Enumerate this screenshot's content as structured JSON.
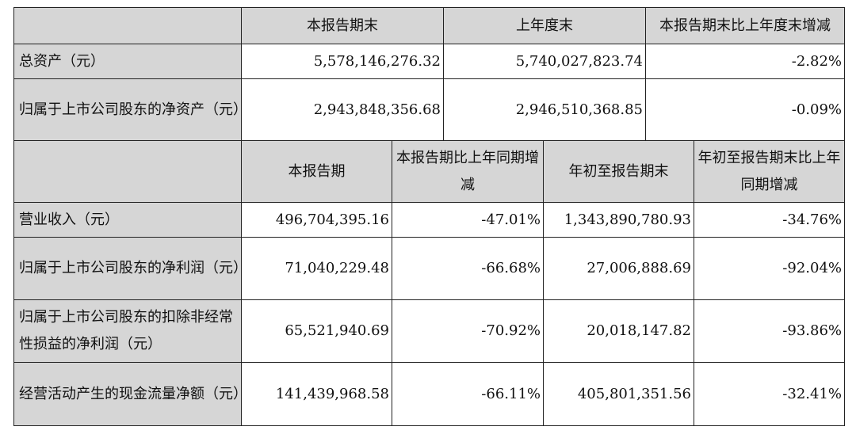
{
  "section1": {
    "headers": [
      "",
      "本报告期末",
      "上年度末",
      "本报告期末比上年度末增减"
    ],
    "rows": [
      {
        "label": "总资产（元）",
        "values": [
          "5,578,146,276.32",
          "5,740,027,823.74",
          "-2.82%"
        ]
      },
      {
        "label": "归属于上市公司股东的净资产（元）",
        "values": [
          "2,943,848,356.68",
          "2,946,510,368.85",
          "-0.09%"
        ]
      }
    ]
  },
  "section2": {
    "headers": [
      "",
      "本报告期",
      "本报告期比上年同期增减",
      "年初至报告期末",
      "年初至报告期末比上年同期增减"
    ],
    "rows": [
      {
        "label": "营业收入（元）",
        "values": [
          "496,704,395.16",
          "-47.01%",
          "1,343,890,780.93",
          "-34.76%"
        ]
      },
      {
        "label": "归属于上市公司股东的净利润（元）",
        "values": [
          "71,040,229.48",
          "-66.68%",
          "27,006,888.69",
          "-92.04%"
        ]
      },
      {
        "label": "归属于上市公司股东的扣除非经常性损益的净利润（元）",
        "values": [
          "65,521,940.69",
          "-70.92%",
          "20,018,147.82",
          "-93.86%"
        ]
      },
      {
        "label": "经营活动产生的现金流量净额（元）",
        "values": [
          "141,439,968.58",
          "-66.11%",
          "405,801,351.56",
          "-32.41%"
        ]
      }
    ]
  }
}
